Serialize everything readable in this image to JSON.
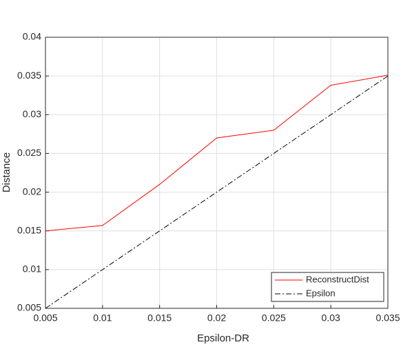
{
  "chart_data": {
    "type": "line",
    "x_label": "Epsilon-DR",
    "y_label": "Distance",
    "x": [
      0.005,
      0.01,
      0.015,
      0.02,
      0.025,
      0.03,
      0.035
    ],
    "series": [
      {
        "name": "ReconstructDist",
        "color": "#ff0000",
        "values": [
          0.015,
          0.0157,
          0.021,
          0.027,
          0.028,
          0.0338,
          0.0351
        ]
      },
      {
        "name": "Epsilon",
        "color": "#000000",
        "values": [
          0.005,
          0.01,
          0.015,
          0.02,
          0.025,
          0.03,
          0.035
        ]
      }
    ],
    "xlim": [
      0.005,
      0.035
    ],
    "xticks": [
      0.005,
      0.01,
      0.015,
      0.02,
      0.025,
      0.03,
      0.035
    ],
    "ylim": [
      0.005,
      0.04
    ],
    "yticks": [
      0.005,
      0.01,
      0.015,
      0.02,
      0.025,
      0.03,
      0.035,
      0.04
    ],
    "grid": true,
    "legend_position": "lower-right"
  }
}
